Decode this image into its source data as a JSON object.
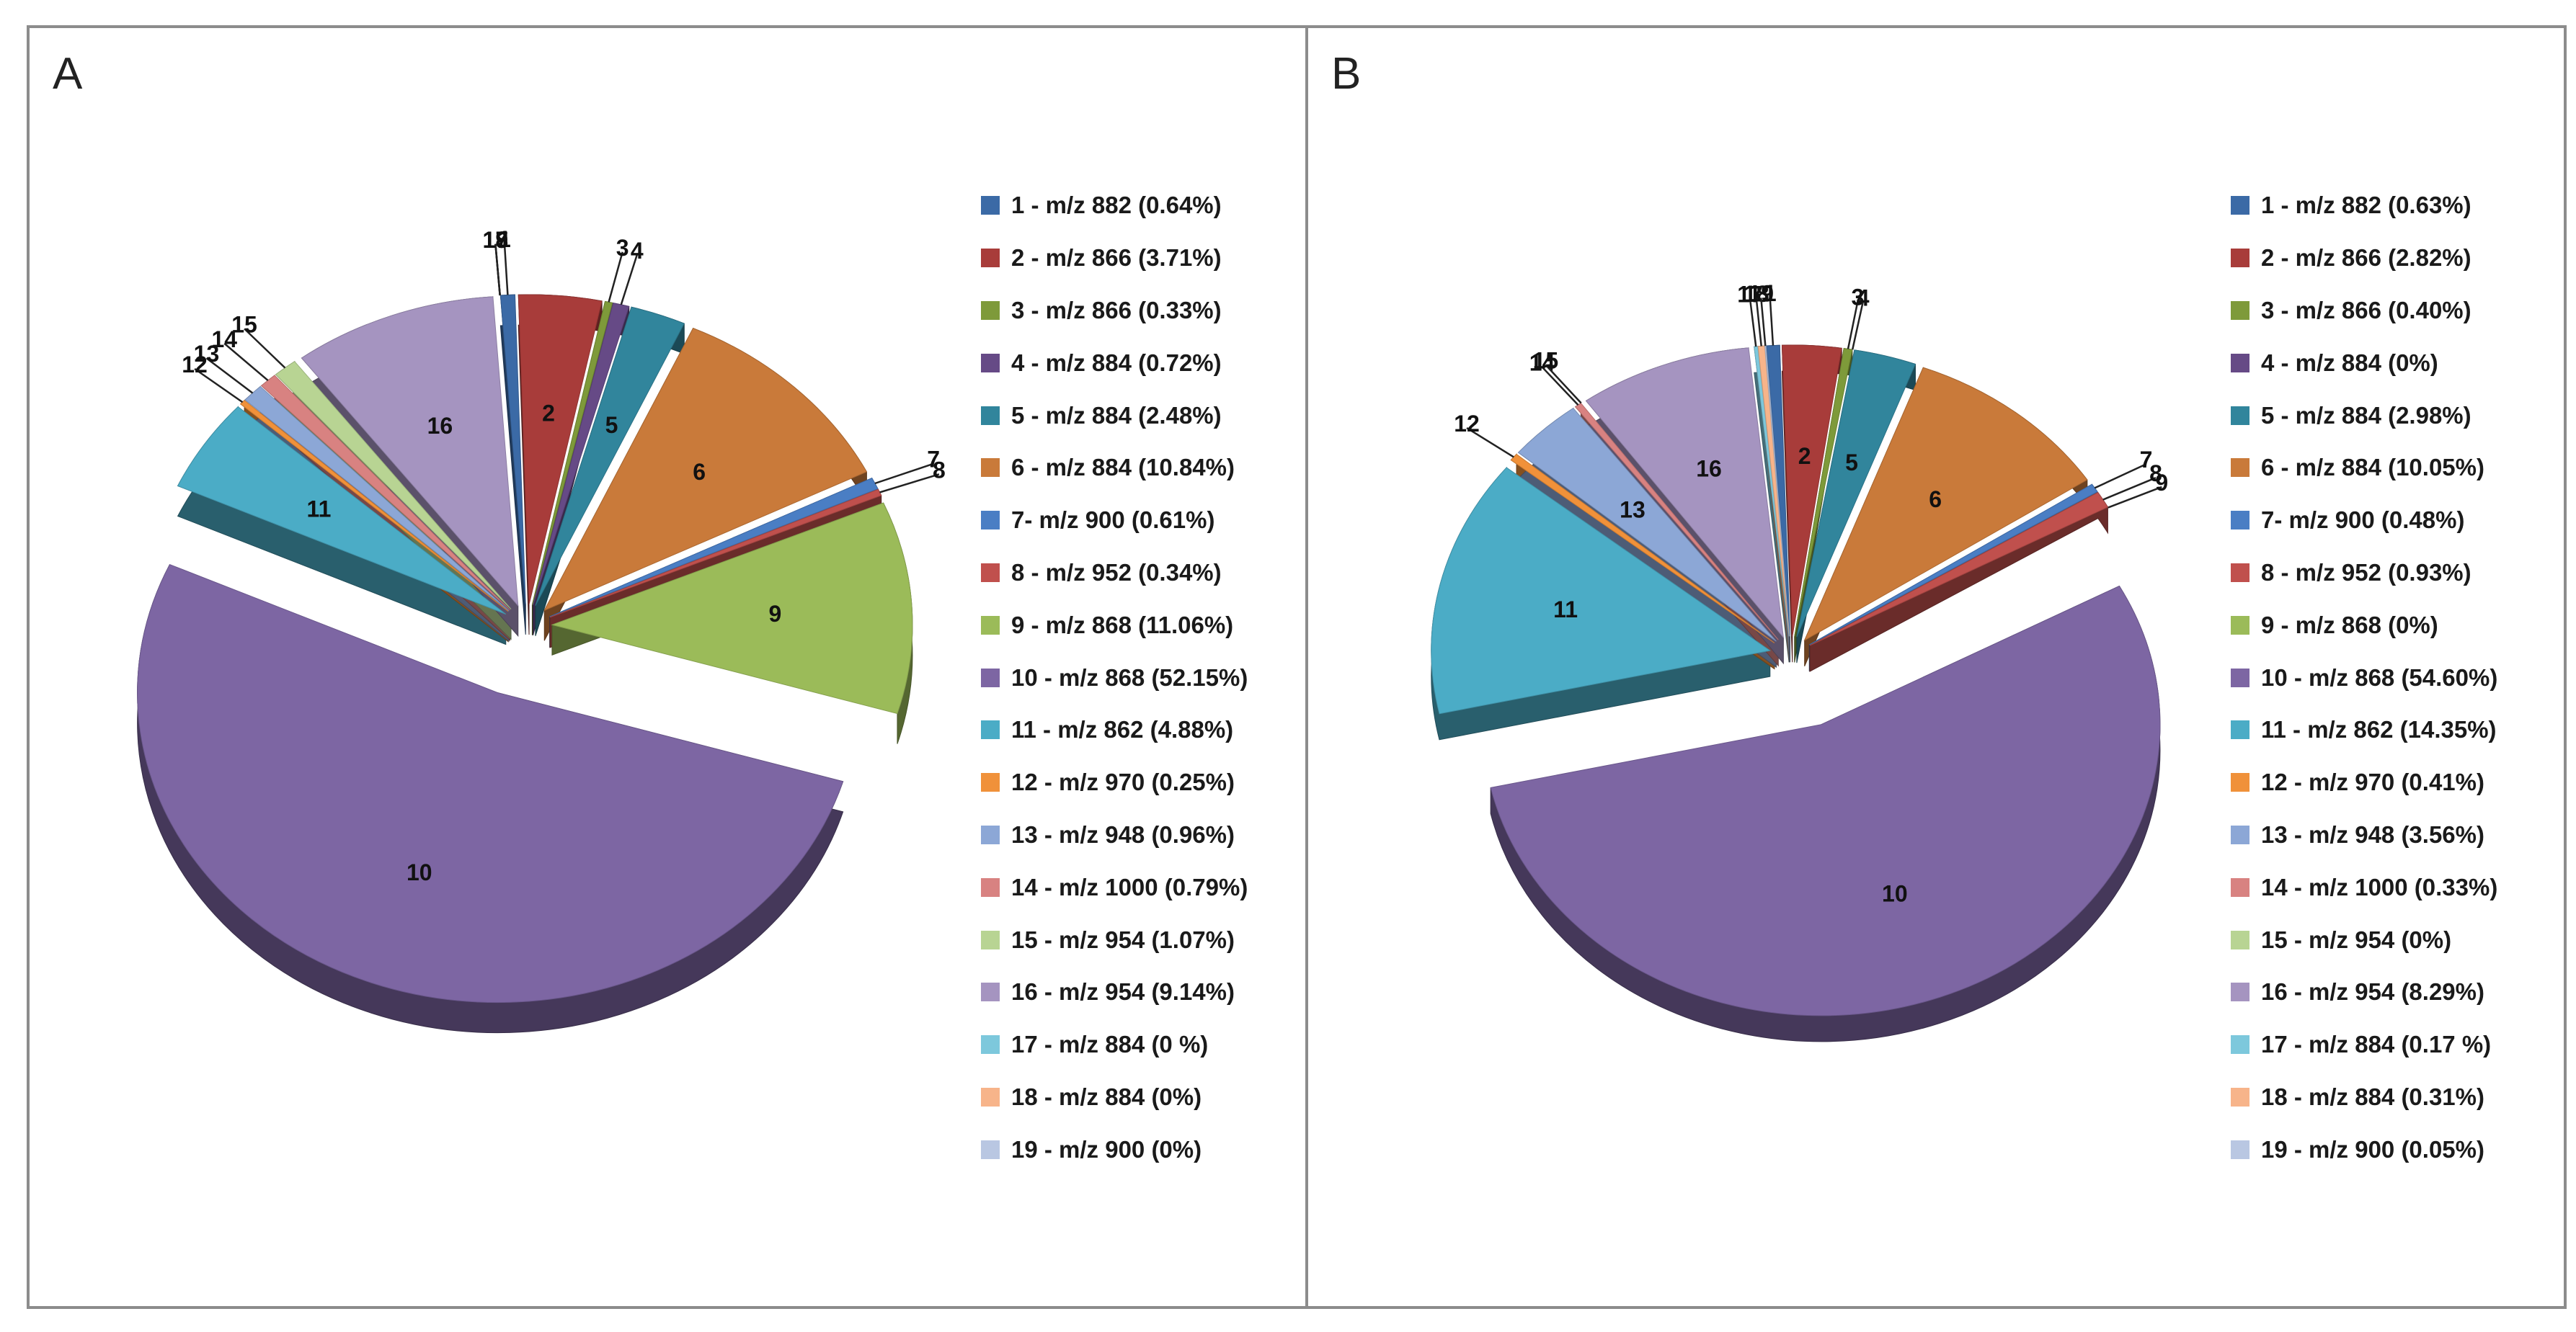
{
  "chart_data": [
    {
      "panel": "A",
      "type": "pie",
      "style": "3D exploded pie",
      "slices": [
        {
          "id": "1",
          "legend": "1 - m/z 882 (0.64%)",
          "value": 0.64,
          "color": "#3b6aa6"
        },
        {
          "id": "2",
          "legend": "2 - m/z 866 (3.71%)",
          "value": 3.71,
          "color": "#a83c3a"
        },
        {
          "id": "3",
          "legend": "3 - m/z 866 (0.33%)",
          "value": 0.33,
          "color": "#7e9a3a"
        },
        {
          "id": "4",
          "legend": "4 - m/z 884 (0.72%)",
          "value": 0.72,
          "color": "#664a86"
        },
        {
          "id": "5",
          "legend": "5 - m/z 884 (2.48%)",
          "value": 2.48,
          "color": "#31859c"
        },
        {
          "id": "6",
          "legend": "6 - m/z 884 (10.84%)",
          "value": 10.84,
          "color": "#c97a3a"
        },
        {
          "id": "7",
          "legend": "7- m/z 900 (0.61%)",
          "value": 0.61,
          "color": "#4a7ec4"
        },
        {
          "id": "8",
          "legend": "8 - m/z 952 (0.34%)",
          "value": 0.34,
          "color": "#c0504d"
        },
        {
          "id": "9",
          "legend": "9 - m/z 868 (11.06%)",
          "value": 11.06,
          "color": "#9bbb59"
        },
        {
          "id": "10",
          "legend": "10 - m/z 868 (52.15%)",
          "value": 52.15,
          "color": "#7d66a3"
        },
        {
          "id": "11",
          "legend": "11 - m/z 862 (4.88%)",
          "value": 4.88,
          "color": "#4bacc6"
        },
        {
          "id": "12",
          "legend": "12 - m/z 970 (0.25%)",
          "value": 0.25,
          "color": "#f0913a"
        },
        {
          "id": "13",
          "legend": "13 - m/z 948 (0.96%)",
          "value": 0.96,
          "color": "#8ca7d6"
        },
        {
          "id": "14",
          "legend": "14 - m/z 1000 (0.79%)",
          "value": 0.79,
          "color": "#d88281"
        },
        {
          "id": "15",
          "legend": "15 - m/z 954 (1.07%)",
          "value": 1.07,
          "color": "#b8d493"
        },
        {
          "id": "16",
          "legend": "16 - m/z 954 (9.14%)",
          "value": 9.14,
          "color": "#a594c0"
        },
        {
          "id": "17",
          "legend": "17 - m/z 884 (0 %)",
          "value": 0,
          "color": "#7dc8dc"
        },
        {
          "id": "18",
          "legend": "18 - m/z 884 (0%)",
          "value": 0,
          "color": "#f7b48a"
        },
        {
          "id": "19",
          "legend": "19 - m/z 900 (0%)",
          "value": 0,
          "color": "#b9c7e2"
        }
      ]
    },
    {
      "panel": "B",
      "type": "pie",
      "style": "3D exploded pie",
      "slices": [
        {
          "id": "1",
          "legend": "1 - m/z 882 (0.63%)",
          "value": 0.63,
          "color": "#3b6aa6"
        },
        {
          "id": "2",
          "legend": "2 - m/z 866 (2.82%)",
          "value": 2.82,
          "color": "#a83c3a"
        },
        {
          "id": "3",
          "legend": "3 - m/z 866 (0.40%)",
          "value": 0.4,
          "color": "#7e9a3a"
        },
        {
          "id": "4",
          "legend": "4 - m/z 884 (0%)",
          "value": 0,
          "color": "#664a86"
        },
        {
          "id": "5",
          "legend": "5 - m/z 884 (2.98%)",
          "value": 2.98,
          "color": "#31859c"
        },
        {
          "id": "6",
          "legend": "6 - m/z 884 (10.05%)",
          "value": 10.05,
          "color": "#c97a3a"
        },
        {
          "id": "7",
          "legend": "7- m/z 900 (0.48%)",
          "value": 0.48,
          "color": "#4a7ec4"
        },
        {
          "id": "8",
          "legend": "8 - m/z 952 (0.93%)",
          "value": 0.93,
          "color": "#c0504d"
        },
        {
          "id": "9",
          "legend": "9 - m/z 868 (0%)",
          "value": 0,
          "color": "#9bbb59"
        },
        {
          "id": "10",
          "legend": "10 - m/z 868 (54.60%)",
          "value": 54.6,
          "color": "#7d66a3"
        },
        {
          "id": "11",
          "legend": "11 - m/z 862 (14.35%)",
          "value": 14.35,
          "color": "#4bacc6"
        },
        {
          "id": "12",
          "legend": "12 - m/z 970 (0.41%)",
          "value": 0.41,
          "color": "#f0913a"
        },
        {
          "id": "13",
          "legend": "13 - m/z 948 (3.56%)",
          "value": 3.56,
          "color": "#8ca7d6"
        },
        {
          "id": "14",
          "legend": "14 - m/z 1000 (0.33%)",
          "value": 0.33,
          "color": "#d88281"
        },
        {
          "id": "15",
          "legend": "15 - m/z 954 (0%)",
          "value": 0,
          "color": "#b8d493"
        },
        {
          "id": "16",
          "legend": "16 - m/z 954 (8.29%)",
          "value": 8.29,
          "color": "#a594c0"
        },
        {
          "id": "17",
          "legend": "17 - m/z 884 (0.17 %)",
          "value": 0.17,
          "color": "#7dc8dc"
        },
        {
          "id": "18",
          "legend": "18 - m/z 884 (0.31%)",
          "value": 0.31,
          "color": "#f7b48a"
        },
        {
          "id": "19",
          "legend": "19 - m/z 900 (0.05%)",
          "value": 0.05,
          "color": "#b9c7e2"
        }
      ]
    }
  ]
}
